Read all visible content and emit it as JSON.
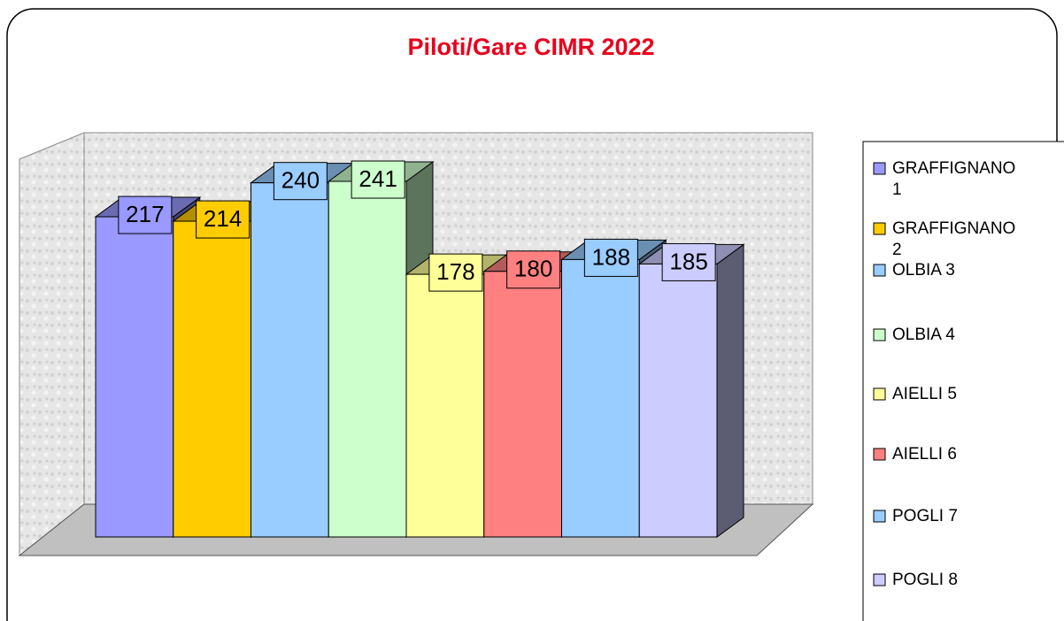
{
  "chart_data": {
    "type": "bar3d",
    "title": "Piloti/Gare CIMR 2022",
    "series": [
      {
        "name": "GRAFFIGNANO 1",
        "color": "#9999ff",
        "values": [
          217
        ]
      },
      {
        "name": "GRAFFIGNANO 2",
        "color": "#ffcc00",
        "values": [
          214
        ]
      },
      {
        "name": "OLBIA 3",
        "color": "#99ccff",
        "values": [
          240
        ]
      },
      {
        "name": "OLBIA 4",
        "color": "#ccffcc",
        "values": [
          241
        ]
      },
      {
        "name": "AIELLI 5",
        "color": "#ffff99",
        "values": [
          178
        ]
      },
      {
        "name": "AIELLI 6",
        "color": "#ff8080",
        "values": [
          180
        ]
      },
      {
        "name": "POGLI 7",
        "color": "#99ccff",
        "values": [
          188
        ]
      },
      {
        "name": "POGLI 8",
        "color": "#ccccff",
        "values": [
          185
        ]
      }
    ],
    "ylim": [
      0,
      250
    ],
    "legend": "right"
  }
}
